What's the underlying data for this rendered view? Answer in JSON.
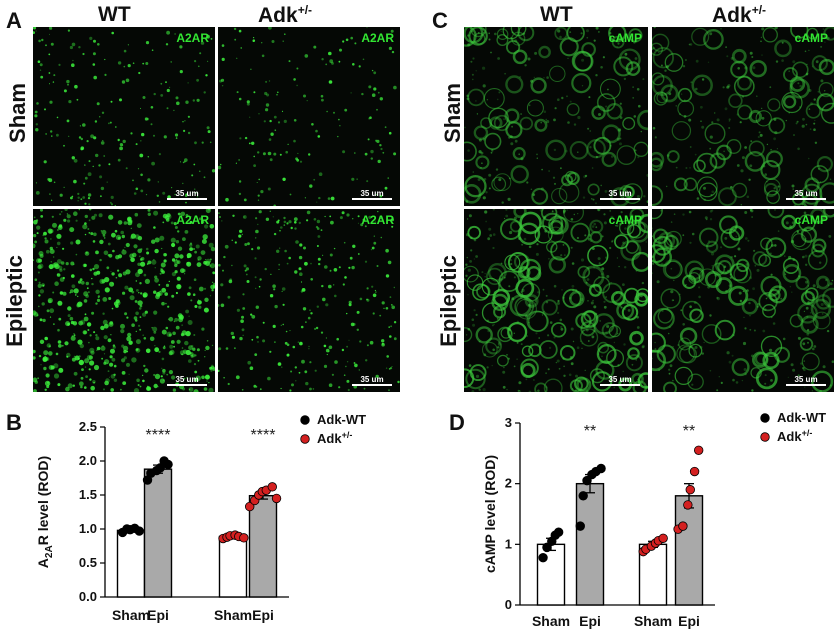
{
  "panels": {
    "A": {
      "letter": "A",
      "col_wt": "WT",
      "col_adk_base": "Adk",
      "col_adk_sup": "+/-",
      "row_sham": "Sham",
      "row_epi": "Epileptic",
      "stain": "A2AR",
      "scale_label": "35 um",
      "color": "#3cf03c"
    },
    "C": {
      "letter": "C",
      "col_wt": "WT",
      "col_adk_base": "Adk",
      "col_adk_sup": "+/-",
      "row_sham": "Sham",
      "row_epi": "Epileptic",
      "stain": "cAMP",
      "scale_label": "35 um",
      "color": "#3cc83c"
    },
    "B": {
      "letter": "B"
    },
    "D": {
      "letter": "D"
    }
  },
  "chart_data": [
    {
      "type": "bar",
      "panel": "B",
      "ylabel_main": "A",
      "ylabel_sub": "2A",
      "ylabel_rest": "R level (ROD)",
      "ylim": [
        0,
        2.5
      ],
      "yticks": [
        "0.0",
        "0.5",
        "1.0",
        "1.5",
        "2.0",
        "2.5"
      ],
      "categories": [
        "Sham",
        "Epi",
        "Sham",
        "Epi"
      ],
      "groups": [
        "Adk-WT",
        "Adk-WT",
        "Adk+/-",
        "Adk+/-"
      ],
      "values": [
        0.98,
        1.88,
        0.89,
        1.49
      ],
      "errors": [
        0.02,
        0.06,
        0.02,
        0.05
      ],
      "fills": [
        "#ffffff",
        "#a9a9a9",
        "#ffffff",
        "#a9a9a9"
      ],
      "dot_colors": [
        "#000000",
        "#000000",
        "#d42020",
        "#d42020"
      ],
      "points": [
        [
          0.95,
          1.0,
          0.99,
          1.01,
          0.97
        ],
        [
          1.72,
          1.82,
          1.86,
          1.9,
          2.0,
          1.95
        ],
        [
          0.86,
          0.88,
          0.9,
          0.91,
          0.89,
          0.87
        ],
        [
          1.33,
          1.42,
          1.5,
          1.55,
          1.57,
          1.62,
          1.45
        ]
      ],
      "significance": [
        "",
        "****",
        "",
        "****"
      ],
      "legend": {
        "entries": [
          {
            "base": "Adk-WT",
            "sup": "",
            "color": "#000000"
          },
          {
            "base": "Adk",
            "sup": "+/-",
            "color": "#d42020"
          }
        ]
      }
    },
    {
      "type": "bar",
      "panel": "D",
      "ylabel_main": "cAMP level (ROD)",
      "ylim": [
        0,
        3
      ],
      "yticks": [
        "0",
        "1",
        "2",
        "3"
      ],
      "categories": [
        "Sham",
        "Epi",
        "Sham",
        "Epi"
      ],
      "groups": [
        "Adk-WT",
        "Adk-WT",
        "Adk+/-",
        "Adk+/-"
      ],
      "values": [
        1.0,
        2.0,
        1.0,
        1.8
      ],
      "errors": [
        0.1,
        0.15,
        0.05,
        0.2
      ],
      "fills": [
        "#ffffff",
        "#a9a9a9",
        "#ffffff",
        "#a9a9a9"
      ],
      "dot_colors": [
        "#000000",
        "#000000",
        "#d42020",
        "#d42020"
      ],
      "points": [
        [
          0.78,
          0.95,
          1.05,
          1.15,
          1.2
        ],
        [
          1.3,
          1.8,
          2.05,
          2.15,
          2.2,
          2.25
        ],
        [
          0.88,
          0.92,
          0.97,
          1.02,
          1.06,
          1.1
        ],
        [
          1.25,
          1.3,
          1.65,
          1.9,
          2.2,
          2.55
        ]
      ],
      "significance": [
        "",
        "**",
        "",
        "**"
      ],
      "legend": {
        "entries": [
          {
            "base": "Adk-WT",
            "sup": "",
            "color": "#000000"
          },
          {
            "base": "Adk",
            "sup": "+/-",
            "color": "#d42020"
          }
        ]
      }
    }
  ]
}
